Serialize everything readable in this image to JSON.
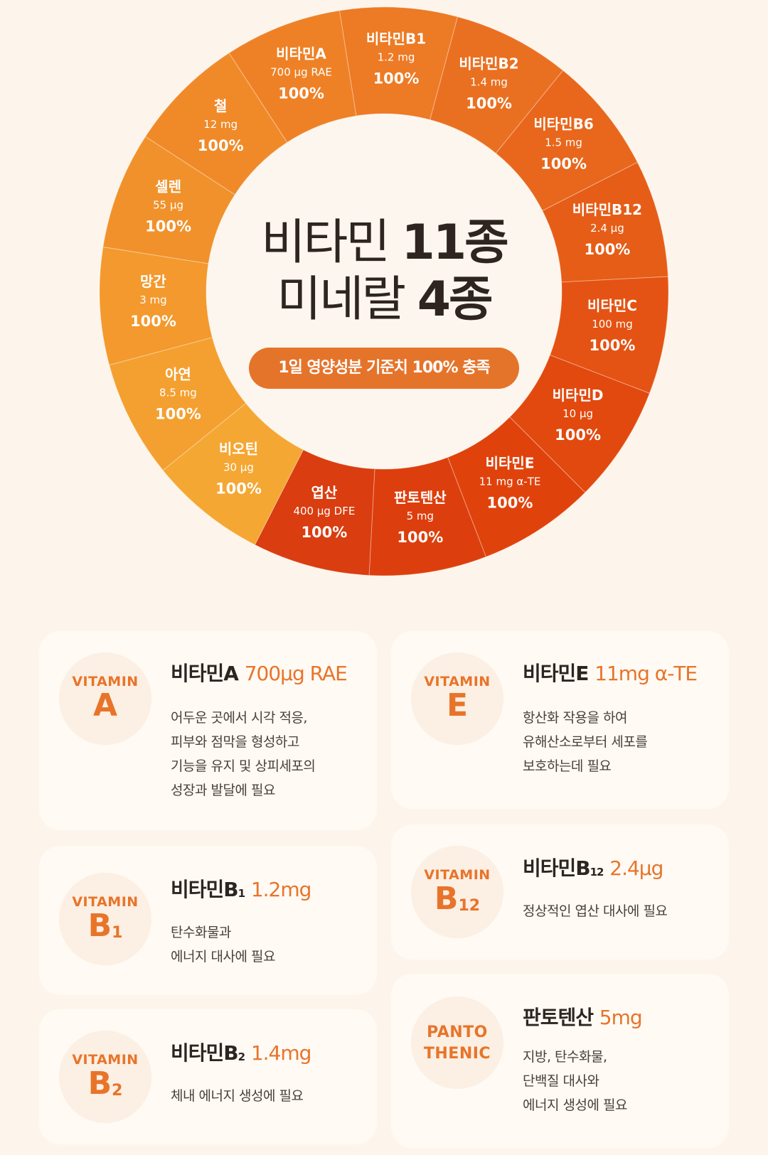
{
  "ring": {
    "segments": [
      {
        "name": "비타민B1",
        "dose": "1.2 mg",
        "pct": "100%",
        "color": "#ed7a24"
      },
      {
        "name": "비타민B2",
        "dose": "1.4 mg",
        "pct": "100%",
        "color": "#ea7021"
      },
      {
        "name": "비타민B6",
        "dose": "1.5 mg",
        "pct": "100%",
        "color": "#e8671c"
      },
      {
        "name": "비타민B12",
        "dose": "2.4 μg",
        "pct": "100%",
        "color": "#e65d17"
      },
      {
        "name": "비타민C",
        "dose": "100 mg",
        "pct": "100%",
        "color": "#e45313"
      },
      {
        "name": "비타민D",
        "dose": "10 μg",
        "pct": "100%",
        "color": "#e2490f"
      },
      {
        "name": "비타민E",
        "dose": "11 mg α-TE",
        "pct": "100%",
        "color": "#e0420c"
      },
      {
        "name": "판토텐산",
        "dose": "5 mg",
        "pct": "100%",
        "color": "#dc3f0d"
      },
      {
        "name": "엽산",
        "dose": "400 μg DFE",
        "pct": "100%",
        "color": "#d93d10"
      },
      {
        "name": "비오틴",
        "dose": "30 μg",
        "pct": "100%",
        "color": "#f5a733"
      },
      {
        "name": "아연",
        "dose": "8.5 mg",
        "pct": "100%",
        "color": "#f4a030"
      },
      {
        "name": "망간",
        "dose": "3 mg",
        "pct": "100%",
        "color": "#f3992d"
      },
      {
        "name": "셀렌",
        "dose": "55 μg",
        "pct": "100%",
        "color": "#f1912b"
      },
      {
        "name": "철",
        "dose": "12 mg",
        "pct": "100%",
        "color": "#f08a29"
      },
      {
        "name": "비타민A",
        "dose": "700 μg RAE",
        "pct": "100%",
        "color": "#ee8126"
      }
    ]
  },
  "center": {
    "line1_prefix": "비타민 ",
    "line1_bold": "11종",
    "line2_prefix": "미네랄 ",
    "line2_bold": "4종",
    "pill": "1일 영양성분 기준치 100% 충족"
  },
  "cards": {
    "vitA": {
      "badge_top": "VITAMIN",
      "badge_big": "A",
      "title_name": "비타민A",
      "title_amount": "700μg RAE",
      "desc": [
        "어두운 곳에서 시각 적응,",
        "피부와 점막을 형성하고",
        "기능을 유지 및 상피세포의",
        "성장과 발달에 필요"
      ]
    },
    "vitE": {
      "badge_top": "VITAMIN",
      "badge_big": "E",
      "title_name": "비타민E",
      "title_amount": "11mg α-TE",
      "desc": [
        "항산화 작용을 하여",
        "유해산소로부터 세포를",
        "보호하는데 필요"
      ]
    },
    "vitB1": {
      "badge_top": "VITAMIN",
      "badge_big": "B",
      "badge_sub": "1",
      "title_name": "비타민B",
      "title_sub": "1",
      "title_amount": "1.2mg",
      "desc": [
        "탄수화물과",
        "에너지 대사에 필요"
      ]
    },
    "vitB12": {
      "badge_top": "VITAMIN",
      "badge_big": "B",
      "badge_sub": "12",
      "title_name": "비타민B",
      "title_sub": "12",
      "title_amount": "2.4μg",
      "desc": [
        "정상적인 엽산 대사에 필요"
      ]
    },
    "vitB2": {
      "badge_top": "VITAMIN",
      "badge_big": "B",
      "badge_sub": "2",
      "title_name": "비타민B",
      "title_sub": "2",
      "title_amount": "1.4mg",
      "desc": [
        "체내 에너지 생성에 필요"
      ]
    },
    "panto": {
      "badge_line1": "PANTO",
      "badge_line2": "THENIC",
      "title_name": "판토텐산",
      "title_amount": "5mg",
      "desc": [
        "지방, 탄수화물,",
        "단백질 대사와",
        "에너지 생성에 필요"
      ]
    }
  }
}
